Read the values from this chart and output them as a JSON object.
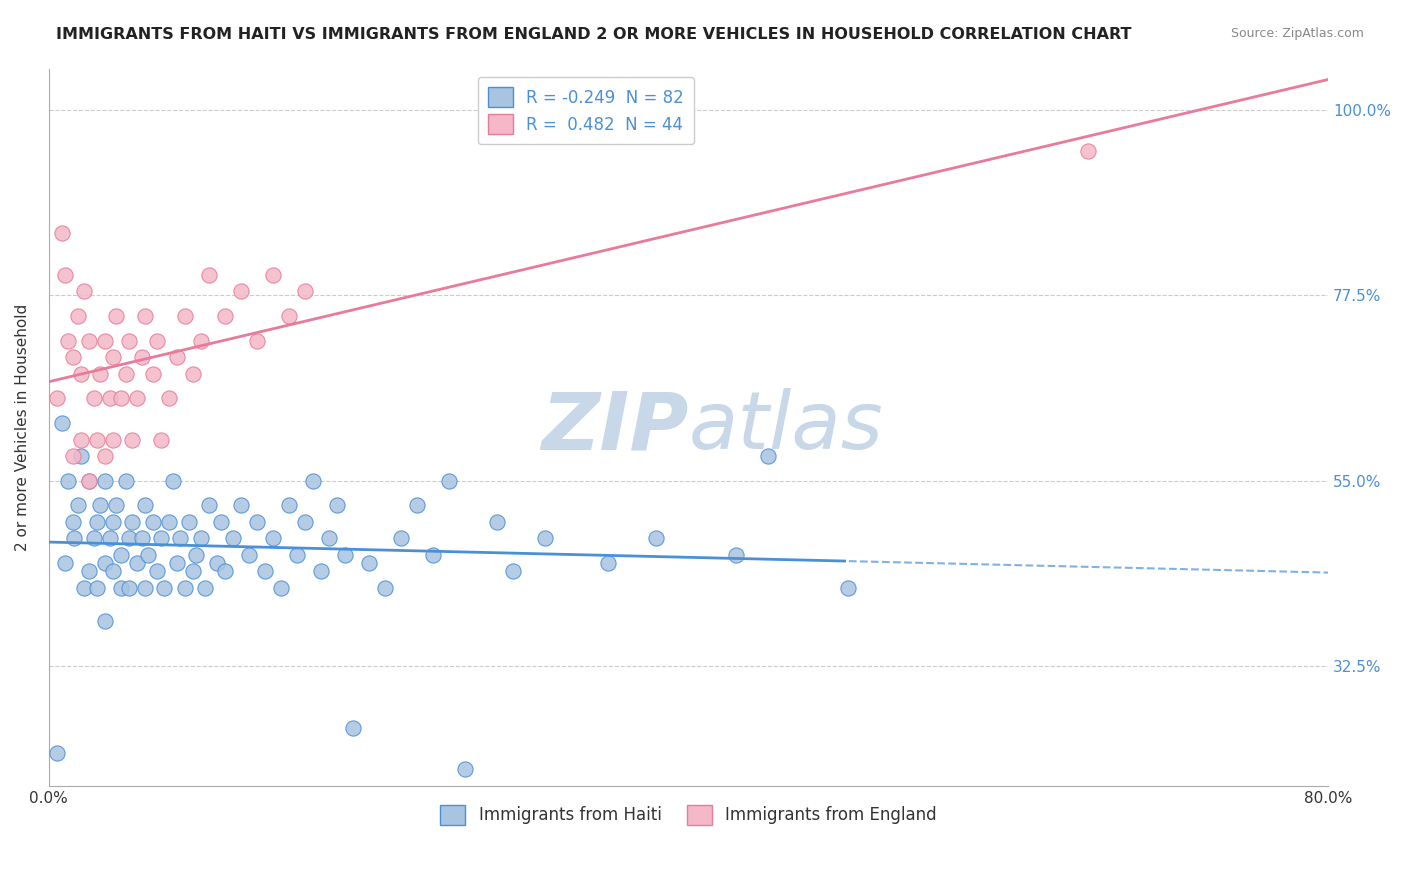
{
  "title": "IMMIGRANTS FROM HAITI VS IMMIGRANTS FROM ENGLAND 2 OR MORE VEHICLES IN HOUSEHOLD CORRELATION CHART",
  "source": "Source: ZipAtlas.com",
  "xlabel": "",
  "ylabel": "2 or more Vehicles in Household",
  "xlim": [
    0.0,
    0.8
  ],
  "ylim": [
    0.18,
    1.05
  ],
  "xticks": [
    0.0,
    0.2,
    0.4,
    0.6,
    0.8
  ],
  "xtick_labels": [
    "0.0%",
    "",
    "",
    "",
    "80.0%"
  ],
  "ytick_labels": [
    "32.5%",
    "55.0%",
    "77.5%",
    "100.0%"
  ],
  "yticks": [
    0.325,
    0.55,
    0.775,
    1.0
  ],
  "haiti_R": -0.249,
  "haiti_N": 82,
  "england_R": 0.482,
  "england_N": 44,
  "haiti_color": "#a8c4e0",
  "england_color": "#f4b8c8",
  "haiti_line_color": "#4a90d9",
  "england_line_color": "#e87a9a",
  "haiti_scatter": [
    [
      0.005,
      0.22
    ],
    [
      0.008,
      0.62
    ],
    [
      0.01,
      0.45
    ],
    [
      0.012,
      0.55
    ],
    [
      0.015,
      0.5
    ],
    [
      0.016,
      0.48
    ],
    [
      0.018,
      0.52
    ],
    [
      0.02,
      0.58
    ],
    [
      0.022,
      0.42
    ],
    [
      0.025,
      0.44
    ],
    [
      0.025,
      0.55
    ],
    [
      0.028,
      0.48
    ],
    [
      0.03,
      0.5
    ],
    [
      0.03,
      0.42
    ],
    [
      0.032,
      0.52
    ],
    [
      0.035,
      0.45
    ],
    [
      0.035,
      0.38
    ],
    [
      0.035,
      0.55
    ],
    [
      0.038,
      0.48
    ],
    [
      0.04,
      0.44
    ],
    [
      0.04,
      0.5
    ],
    [
      0.042,
      0.52
    ],
    [
      0.045,
      0.46
    ],
    [
      0.045,
      0.42
    ],
    [
      0.048,
      0.55
    ],
    [
      0.05,
      0.48
    ],
    [
      0.05,
      0.42
    ],
    [
      0.052,
      0.5
    ],
    [
      0.055,
      0.45
    ],
    [
      0.058,
      0.48
    ],
    [
      0.06,
      0.52
    ],
    [
      0.06,
      0.42
    ],
    [
      0.062,
      0.46
    ],
    [
      0.065,
      0.5
    ],
    [
      0.068,
      0.44
    ],
    [
      0.07,
      0.48
    ],
    [
      0.072,
      0.42
    ],
    [
      0.075,
      0.5
    ],
    [
      0.078,
      0.55
    ],
    [
      0.08,
      0.45
    ],
    [
      0.082,
      0.48
    ],
    [
      0.085,
      0.42
    ],
    [
      0.088,
      0.5
    ],
    [
      0.09,
      0.44
    ],
    [
      0.092,
      0.46
    ],
    [
      0.095,
      0.48
    ],
    [
      0.098,
      0.42
    ],
    [
      0.1,
      0.52
    ],
    [
      0.105,
      0.45
    ],
    [
      0.108,
      0.5
    ],
    [
      0.11,
      0.44
    ],
    [
      0.115,
      0.48
    ],
    [
      0.12,
      0.52
    ],
    [
      0.125,
      0.46
    ],
    [
      0.13,
      0.5
    ],
    [
      0.135,
      0.44
    ],
    [
      0.14,
      0.48
    ],
    [
      0.145,
      0.42
    ],
    [
      0.15,
      0.52
    ],
    [
      0.155,
      0.46
    ],
    [
      0.16,
      0.5
    ],
    [
      0.165,
      0.55
    ],
    [
      0.17,
      0.44
    ],
    [
      0.175,
      0.48
    ],
    [
      0.18,
      0.52
    ],
    [
      0.185,
      0.46
    ],
    [
      0.19,
      0.25
    ],
    [
      0.2,
      0.45
    ],
    [
      0.21,
      0.42
    ],
    [
      0.22,
      0.48
    ],
    [
      0.23,
      0.52
    ],
    [
      0.24,
      0.46
    ],
    [
      0.25,
      0.55
    ],
    [
      0.26,
      0.2
    ],
    [
      0.28,
      0.5
    ],
    [
      0.29,
      0.44
    ],
    [
      0.31,
      0.48
    ],
    [
      0.35,
      0.45
    ],
    [
      0.38,
      0.48
    ],
    [
      0.43,
      0.46
    ],
    [
      0.45,
      0.58
    ],
    [
      0.5,
      0.42
    ]
  ],
  "england_scatter": [
    [
      0.005,
      0.65
    ],
    [
      0.008,
      0.85
    ],
    [
      0.01,
      0.8
    ],
    [
      0.012,
      0.72
    ],
    [
      0.015,
      0.7
    ],
    [
      0.015,
      0.58
    ],
    [
      0.018,
      0.75
    ],
    [
      0.02,
      0.6
    ],
    [
      0.02,
      0.68
    ],
    [
      0.022,
      0.78
    ],
    [
      0.025,
      0.55
    ],
    [
      0.025,
      0.72
    ],
    [
      0.028,
      0.65
    ],
    [
      0.03,
      0.6
    ],
    [
      0.032,
      0.68
    ],
    [
      0.035,
      0.72
    ],
    [
      0.035,
      0.58
    ],
    [
      0.038,
      0.65
    ],
    [
      0.04,
      0.7
    ],
    [
      0.04,
      0.6
    ],
    [
      0.042,
      0.75
    ],
    [
      0.045,
      0.65
    ],
    [
      0.048,
      0.68
    ],
    [
      0.05,
      0.72
    ],
    [
      0.052,
      0.6
    ],
    [
      0.055,
      0.65
    ],
    [
      0.058,
      0.7
    ],
    [
      0.06,
      0.75
    ],
    [
      0.065,
      0.68
    ],
    [
      0.068,
      0.72
    ],
    [
      0.07,
      0.6
    ],
    [
      0.075,
      0.65
    ],
    [
      0.08,
      0.7
    ],
    [
      0.085,
      0.75
    ],
    [
      0.09,
      0.68
    ],
    [
      0.095,
      0.72
    ],
    [
      0.1,
      0.8
    ],
    [
      0.11,
      0.75
    ],
    [
      0.12,
      0.78
    ],
    [
      0.13,
      0.72
    ],
    [
      0.14,
      0.8
    ],
    [
      0.15,
      0.75
    ],
    [
      0.16,
      0.78
    ],
    [
      0.65,
      0.95
    ]
  ],
  "watermark_zip": "ZIP",
  "watermark_atlas": "atlas",
  "watermark_color": "#c8d8e8",
  "background_color": "#ffffff",
  "grid_color": "#cccccc"
}
